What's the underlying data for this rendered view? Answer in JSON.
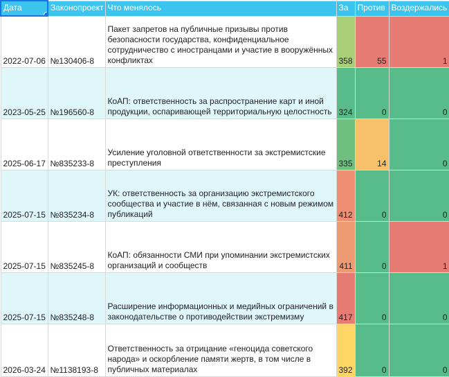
{
  "headers": {
    "date": "Дата",
    "bill": "Законопроект",
    "changes": "Что менялось",
    "for": "За",
    "against": "Против",
    "abstained": "Воздержались"
  },
  "rows": [
    {
      "date": "2022-07-06",
      "bill": "№130406-8",
      "changes": "Пакет запретов на публичные призывы против безопасности государства, конфиденциальное сотрудничество с иностранцами и участие в вооружённых конфликтах",
      "for": "358",
      "against": "55",
      "abstained": "1"
    },
    {
      "date": "2023-05-25",
      "bill": "№196560-8",
      "changes": "КоАП: ответственность за распространение карт и иной продукции, оспаривающей территориальную целостность",
      "for": "324",
      "against": "0",
      "abstained": "0"
    },
    {
      "date": "2025-06-17",
      "bill": "№835233-8",
      "changes": "Усиление уголовной ответственности за экстремистские преступления",
      "for": "335",
      "against": "14",
      "abstained": "0"
    },
    {
      "date": "2025-07-15",
      "bill": "№835234-8",
      "changes": "УК: ответственность за организацию экстремистского сообщества и участие в нём, связанная с новым режимом публикаций",
      "for": "412",
      "against": "0",
      "abstained": "0"
    },
    {
      "date": "2025-07-15",
      "bill": "№835245-8",
      "changes": "КоАП: обязанности СМИ при упоминании экстремистских организаций и сообществ",
      "for": "411",
      "against": "0",
      "abstained": "1"
    },
    {
      "date": "2025-07-15",
      "bill": "№835248-8",
      "changes": "Расширение информационных и медийных ограничений в законодательстве о противодействии экстремизму",
      "for": "417",
      "against": "0",
      "abstained": "0"
    },
    {
      "date": "2026-03-24",
      "bill": "№1138193-8",
      "changes": "Ответственность за отрицание «геноцида советского народа» и оскорбление памяти жертв, в том числе в публичных материалах",
      "for": "392",
      "against": "0",
      "abstained": "0"
    }
  ],
  "colors": {
    "header_bg": "#3bc4ee",
    "zebra_bg": "#e0f7fa",
    "red": "#e67c73",
    "green": "#57bb8a",
    "yellow": "#ffd666",
    "orange": "#f6b26b",
    "selection": "#1a73e8"
  },
  "cell_colors": [
    {
      "for": "#a8cf78",
      "against": "#e67c73",
      "abstained": "#e67c73"
    },
    {
      "for": "#57bb8a",
      "against": "#57bb8a",
      "abstained": "#57bb8a"
    },
    {
      "for": "#6fc080",
      "against": "#f7c16a",
      "abstained": "#57bb8a"
    },
    {
      "for": "#ec8f72",
      "against": "#57bb8a",
      "abstained": "#57bb8a"
    },
    {
      "for": "#ee9a73",
      "against": "#57bb8a",
      "abstained": "#e67c73"
    },
    {
      "for": "#e67c73",
      "against": "#57bb8a",
      "abstained": "#57bb8a"
    },
    {
      "for": "#ffd666",
      "against": "#57bb8a",
      "abstained": "#57bb8a"
    }
  ]
}
